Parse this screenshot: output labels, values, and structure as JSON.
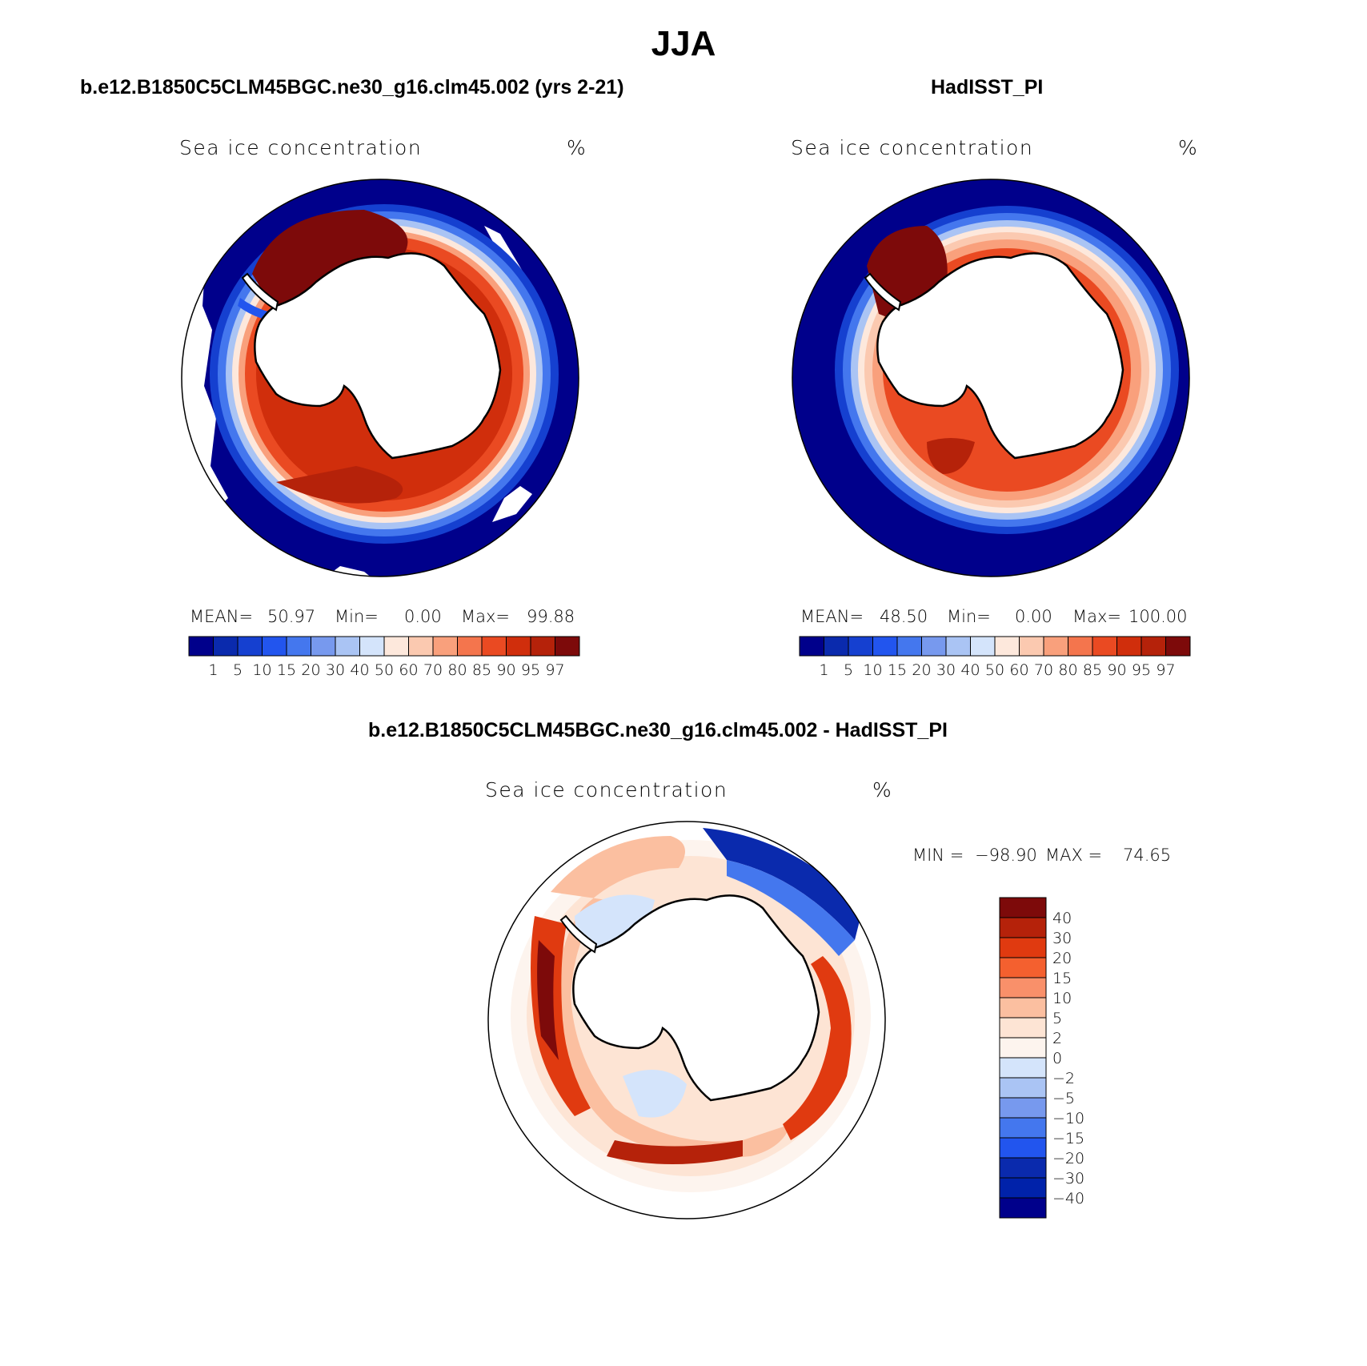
{
  "title": "JJA",
  "panels": [
    {
      "id": "model",
      "title": "b.e12.B1850C5CLM45BGC.ne30_g16.clm45.002 (yrs 2-21)",
      "variable": "Sea ice concentration",
      "units": "%",
      "mean_label": "MEAN=",
      "mean": "50.97",
      "min_label": "Min=",
      "min": "0.00",
      "max_label": "Max=",
      "max": "99.88"
    },
    {
      "id": "obs",
      "title": "HadISST_PI",
      "variable": "Sea ice concentration",
      "units": "%",
      "mean_label": "MEAN=",
      "mean": "48.50",
      "min_label": "Min=",
      "min": "0.00",
      "max_label": "Max=",
      "max": "100.00"
    },
    {
      "id": "diff",
      "title": "b.e12.B1850C5CLM45BGC.ne30_g16.clm45.002 - HadISST_PI",
      "variable": "Sea ice concentration",
      "units": "%",
      "min_label": "MIN =",
      "min": "−98.90",
      "max_label": "MAX =",
      "max": "74.65"
    }
  ],
  "colorbar_abs": {
    "levels": [
      "1",
      "5",
      "10",
      "15",
      "20",
      "30",
      "40",
      "50",
      "60",
      "70",
      "80",
      "85",
      "90",
      "95",
      "97"
    ],
    "colors": [
      "#00008b",
      "#0a2aad",
      "#1540d0",
      "#2255ee",
      "#4477ee",
      "#7799ee",
      "#aac4f4",
      "#d4e4fb",
      "#fde8dc",
      "#fbc9b0",
      "#f9a07c",
      "#f4754d",
      "#ea4a22",
      "#d02e0c",
      "#b5220a",
      "#7d0a0a"
    ]
  },
  "colorbar_diff": {
    "levels": [
      "40",
      "30",
      "20",
      "15",
      "10",
      "5",
      "2",
      "0",
      "−2",
      "−5",
      "−10",
      "−15",
      "−20",
      "−30",
      "−40"
    ],
    "colors": [
      "#7d0a0a",
      "#b5220a",
      "#e03a10",
      "#f4602f",
      "#f9906a",
      "#fbbfa0",
      "#fde4d4",
      "#fdf4ee",
      "#d4e4fb",
      "#aac4f4",
      "#7799ee",
      "#4477ee",
      "#2255ee",
      "#0a2aad",
      "#0022aa",
      "#00008b"
    ]
  }
}
